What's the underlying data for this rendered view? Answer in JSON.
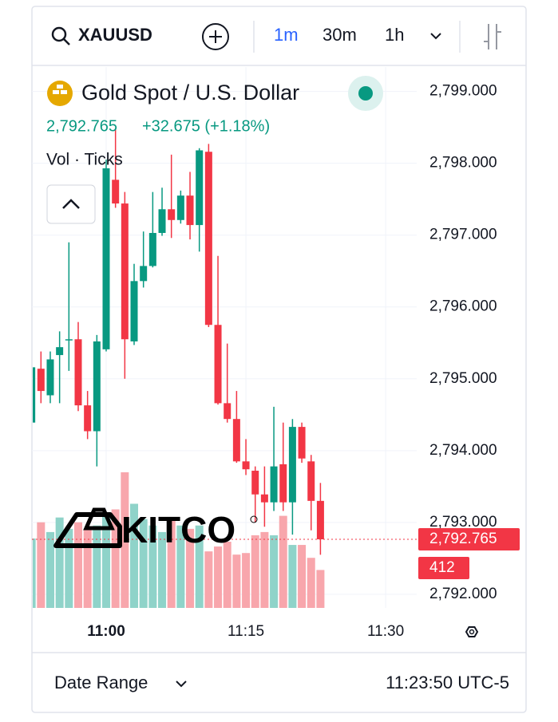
{
  "toolbar": {
    "symbol": "XAUUSD",
    "intervals": [
      "1m",
      "30m",
      "1h"
    ]
  },
  "header": {
    "title": "Gold Spot / U.S. Dollar",
    "price": "2,792.765",
    "change": "+32.675 (+1.18%)",
    "indicator": "Vol · Ticks"
  },
  "logo": {
    "text": "KITCO"
  },
  "footer": {
    "range": "Date Range",
    "time": "11:23:50 UTC-5"
  },
  "chart_data": {
    "type": "candlestick",
    "categories": [
      null,
      null,
      null,
      null,
      null,
      null,
      null,
      null,
      "11:00",
      null,
      null,
      null,
      null,
      null,
      null,
      null,
      null,
      null,
      null,
      null,
      null,
      null,
      null,
      "11:15",
      null,
      null,
      null,
      null,
      null,
      null,
      null,
      null
    ],
    "open": [
      2794.39,
      2795.14,
      2794.77,
      2795.33,
      2795.55,
      2795.55,
      2794.63,
      2794.27,
      2795.41,
      2797.77,
      2797.44,
      2795.52,
      2796.36,
      2796.57,
      2797.03,
      2797.36,
      2797.21,
      2797.55,
      2797.14,
      2798.16,
      2795.75,
      2794.66,
      2794.44,
      2793.85,
      2793.72,
      2793.39,
      2793.28,
      2793.81,
      2793.28,
      2794.33,
      2793.85,
      2793.3
    ],
    "high": [
      2795.38,
      2795.38,
      2795.38,
      2795.66,
      2796.9,
      2795.79,
      2794.83,
      2795.61,
      2798.05,
      2798.49,
      2797.6,
      2796.6,
      2797.05,
      2797.6,
      2797.66,
      2798.12,
      2797.62,
      2797.88,
      2798.21,
      2798.27,
      2796.71,
      2795.49,
      2794.83,
      2794.16,
      2793.78,
      2793.78,
      2794.61,
      2794.39,
      2794.44,
      2794.39,
      2793.94,
      2793.55
    ],
    "low": [
      2794.39,
      2794.66,
      2794.66,
      2794.66,
      2795.11,
      2794.55,
      2794.16,
      2793.78,
      2795.38,
      2797.38,
      2795.0,
      2795.47,
      2796.27,
      2796.55,
      2796.99,
      2796.96,
      2797.16,
      2796.94,
      2796.77,
      2795.72,
      2794.64,
      2794.39,
      2793.83,
      2793.66,
      2793.0,
      2792.94,
      2793.16,
      2793.16,
      2792.83,
      2793.83,
      2792.89,
      2792.55
    ],
    "close": [
      2795.16,
      2794.83,
      2795.27,
      2795.44,
      2795.55,
      2794.63,
      2794.27,
      2795.52,
      2797.93,
      2797.44,
      2795.55,
      2796.36,
      2796.57,
      2797.03,
      2797.36,
      2797.21,
      2797.55,
      2797.14,
      2798.18,
      2795.75,
      2794.66,
      2794.44,
      2793.85,
      2793.74,
      2793.39,
      2793.28,
      2793.78,
      2793.28,
      2794.33,
      2793.89,
      2793.3,
      2792.765
    ],
    "volumes": [
      754,
      930,
      824,
      982,
      859,
      930,
      859,
      895,
      1035,
      1070,
      1473,
      1131,
      965,
      895,
      824,
      982,
      895,
      859,
      895,
      614,
      667,
      719,
      579,
      596,
      789,
      824,
      789,
      1000,
      684,
      684,
      544,
      412
    ],
    "last_price_label": "2,792.765",
    "up_color": "#089981",
    "down_color": "#f23645",
    "up_volume_color": "#8fd3c9",
    "down_volume_color": "#f8a6ac",
    "ylim": [
      2791.81,
      2799.34
    ],
    "yticks": [
      {
        "value": 2799,
        "label": "2,799.000"
      },
      {
        "value": 2798,
        "label": "2,798.000"
      },
      {
        "value": 2797,
        "label": "2,797.000"
      },
      {
        "value": 2796,
        "label": "2,796.000"
      },
      {
        "value": 2795,
        "label": "2,795.000"
      },
      {
        "value": 2794,
        "label": "2,794.000"
      },
      {
        "value": 2793,
        "label": "2,793.000"
      },
      {
        "value": 2792,
        "label": "2,792.000"
      }
    ],
    "xticks": [
      {
        "value": 8,
        "label": "11:00"
      },
      {
        "value": 23,
        "label": "11:15"
      },
      {
        "value": 38,
        "label": "11:30"
      }
    ],
    "grid": true
  }
}
